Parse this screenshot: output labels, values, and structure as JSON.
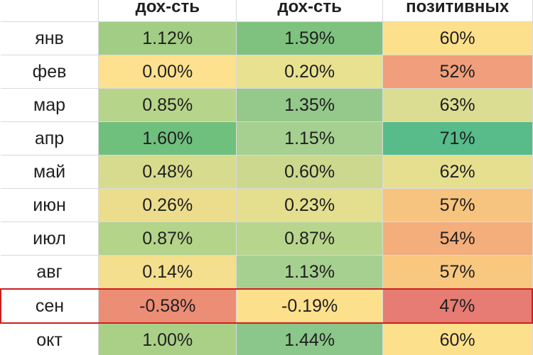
{
  "header": {
    "month_col": "",
    "col1": "дох-сть",
    "col2": "дох-сть",
    "col3": "позитивных"
  },
  "rows": [
    {
      "month": "янв",
      "v1": "1.12%",
      "v2": "1.59%",
      "v3": "60%",
      "c1": "#a2cd84",
      "c2": "#7fc27f",
      "c3": "#fde08b"
    },
    {
      "month": "фев",
      "v1": "0.00%",
      "v2": "0.20%",
      "v3": "52%",
      "c1": "#fde18f",
      "c2": "#e8e190",
      "c3": "#f09e7b"
    },
    {
      "month": "мар",
      "v1": "0.85%",
      "v2": "1.35%",
      "v3": "63%",
      "c1": "#b7d58a",
      "c2": "#94c98b",
      "c3": "#dbdd92"
    },
    {
      "month": "апр",
      "v1": "1.60%",
      "v2": "1.15%",
      "v3": "71%",
      "c1": "#6fbf7d",
      "c2": "#a5d090",
      "c3": "#57bb8a"
    },
    {
      "month": "май",
      "v1": "0.48%",
      "v2": "0.60%",
      "v3": "62%",
      "c1": "#d7db8d",
      "c2": "#cbd88e",
      "c3": "#e6df8f"
    },
    {
      "month": "июн",
      "v1": "0.26%",
      "v2": "0.23%",
      "v3": "57%",
      "c1": "#ecdd8d",
      "c2": "#e3df8f",
      "c3": "#f7c47f"
    },
    {
      "month": "июл",
      "v1": "0.87%",
      "v2": "0.87%",
      "v3": "54%",
      "c1": "#b4d48a",
      "c2": "#b8d58d",
      "c3": "#f4ae7b"
    },
    {
      "month": "авг",
      "v1": "0.14%",
      "v2": "1.13%",
      "v3": "57%",
      "c1": "#f3df8d",
      "c2": "#a6d090",
      "c3": "#f8c780"
    },
    {
      "month": "сен",
      "v1": "-0.58%",
      "v2": "-0.19%",
      "v3": "47%",
      "c1": "#ec8d75",
      "c2": "#fde08b",
      "c3": "#e67c73",
      "highlight": true
    },
    {
      "month": "окт",
      "v1": "1.00%",
      "v2": "1.44%",
      "v3": "60%",
      "c1": "#aad087",
      "c2": "#8bc78a",
      "c3": "#fde08b"
    }
  ]
}
